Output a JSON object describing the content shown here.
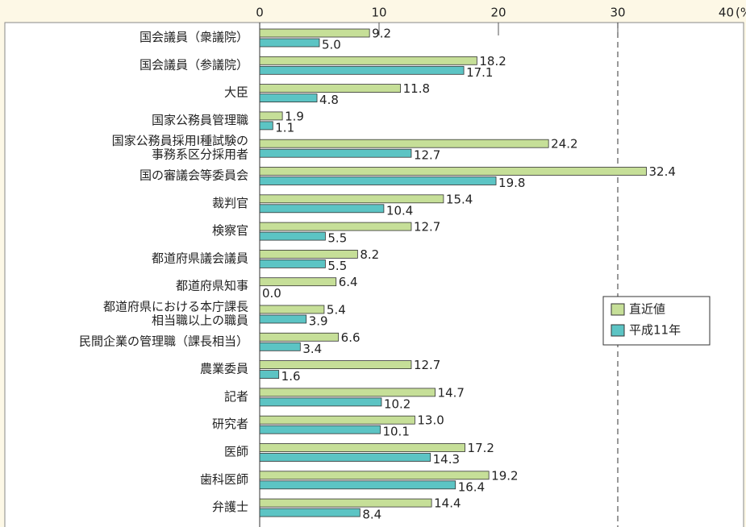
{
  "chart_data": {
    "type": "hbar",
    "categories": [
      "国会議員（衆議院）",
      "国会議員（参議院）",
      "大臣",
      "国家公務員管理職",
      "国家公務員採用Ⅰ種試験の\n事務系区分採用者",
      "国の審議会等委員会",
      "裁判官",
      "検察官",
      "都道府県議会議員",
      "都道府県知事",
      "都道府県における本庁課長\n相当職以上の職員",
      "民間企業の管理職（課長相当）",
      "農業委員",
      "記者",
      "研究者",
      "医師",
      "歯科医師",
      "弁護士"
    ],
    "series": [
      {
        "name": "直近値",
        "color": "#c6df98",
        "values": [
          9.2,
          18.2,
          11.8,
          1.9,
          24.2,
          32.4,
          15.4,
          12.7,
          8.2,
          6.4,
          5.4,
          6.6,
          12.7,
          14.7,
          13.0,
          17.2,
          19.2,
          14.4
        ],
        "value_labels": [
          "9.2",
          "18.2",
          "11.8",
          "1.9",
          "24.2",
          "32.4",
          "15.4",
          "12.7",
          "8.2",
          "6.4",
          "5.4",
          "6.6",
          "12.7",
          "14.7",
          "13.0",
          "17.2",
          "19.2",
          "14.4"
        ]
      },
      {
        "name": "平成11年",
        "color": "#5cc4c4",
        "values": [
          5.0,
          17.1,
          4.8,
          1.1,
          12.7,
          19.8,
          10.4,
          5.5,
          5.5,
          0.0,
          3.9,
          3.4,
          1.6,
          10.2,
          10.1,
          14.3,
          16.4,
          8.4
        ],
        "value_labels": [
          "5.0",
          "17.1",
          "4.8",
          "1.1",
          "12.7",
          "19.8",
          "10.4",
          "5.5",
          "5.5",
          "0.0",
          "3.9",
          "3.4",
          "1.6",
          "10.2",
          "10.1",
          "14.3",
          "16.4",
          "8.4"
        ]
      }
    ],
    "xlim": [
      0,
      40
    ],
    "xticks": [
      0,
      10,
      20,
      30,
      40
    ],
    "x_unit": "(%)",
    "reference_line": 30,
    "legend": "right"
  }
}
